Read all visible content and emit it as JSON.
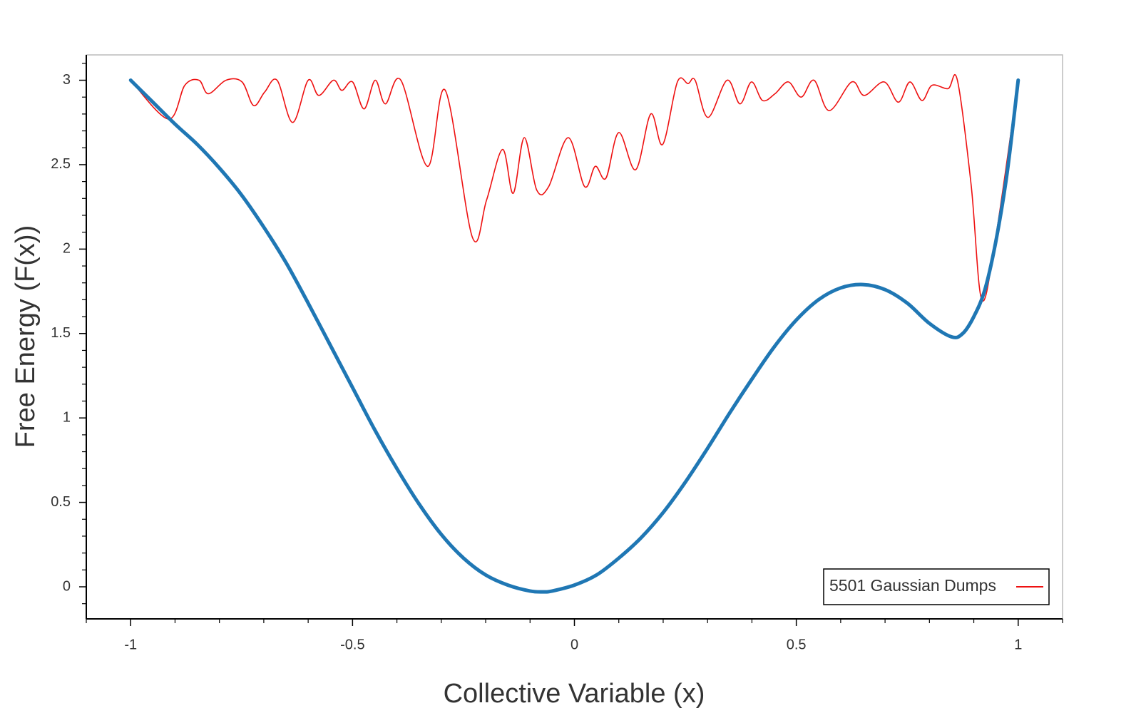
{
  "chart_data": {
    "type": "line",
    "xlabel": "Collective Variable (x)",
    "ylabel": "Free Energy (F(x))",
    "xlim": [
      -1.1,
      1.1
    ],
    "ylim": [
      -0.19,
      3.15
    ],
    "xticks": [
      -1,
      -0.5,
      0,
      0.5,
      1
    ],
    "yticks": [
      0,
      0.5,
      1,
      1.5,
      2,
      2.5,
      3
    ],
    "x_minor_ticks": [
      -1.1,
      -0.9,
      -0.8,
      -0.7,
      -0.6,
      -0.4,
      -0.3,
      -0.2,
      -0.1,
      0.1,
      0.2,
      0.3,
      0.4,
      0.6,
      0.7,
      0.8,
      0.9,
      1.1
    ],
    "y_minor_ticks": [
      -0.1,
      0.1,
      0.2,
      0.3,
      0.4,
      0.6,
      0.7,
      0.8,
      0.9,
      1.1,
      1.2,
      1.3,
      1.4,
      1.6,
      1.7,
      1.8,
      1.9,
      2.1,
      2.2,
      2.3,
      2.4,
      2.6,
      2.7,
      2.8,
      2.9,
      3.1
    ],
    "legend": "lower right",
    "series": [
      {
        "color": "#1f77b4",
        "width": 5,
        "x": [
          -1,
          -0.95,
          -0.9,
          -0.85,
          -0.8,
          -0.75,
          -0.7,
          -0.65,
          -0.6,
          -0.55,
          -0.5,
          -0.45,
          -0.4,
          -0.35,
          -0.3,
          -0.25,
          -0.2,
          -0.15,
          -0.1,
          -0.07,
          -0.05,
          0,
          0.05,
          0.1,
          0.15,
          0.2,
          0.25,
          0.3,
          0.35,
          0.4,
          0.45,
          0.5,
          0.55,
          0.6,
          0.65,
          0.7,
          0.75,
          0.8,
          0.85,
          0.875,
          0.9,
          0.925,
          0.95,
          0.975,
          1
        ],
        "values": [
          3.0,
          2.87,
          2.74,
          2.62,
          2.48,
          2.32,
          2.13,
          1.92,
          1.68,
          1.43,
          1.18,
          0.93,
          0.7,
          0.49,
          0.31,
          0.17,
          0.07,
          0.01,
          -0.025,
          -0.03,
          -0.025,
          0.01,
          0.07,
          0.17,
          0.29,
          0.44,
          0.62,
          0.82,
          1.03,
          1.23,
          1.42,
          1.58,
          1.7,
          1.77,
          1.79,
          1.76,
          1.68,
          1.56,
          1.48,
          1.5,
          1.6,
          1.76,
          2.05,
          2.45,
          3.0
        ]
      },
      {
        "name": "5501 Gaussian Dumps",
        "color": "#ee1111",
        "width": 1.6,
        "x": [
          -1,
          -0.915,
          -0.878,
          -0.846,
          -0.825,
          -0.785,
          -0.749,
          -0.723,
          -0.698,
          -0.67,
          -0.635,
          -0.6,
          -0.576,
          -0.543,
          -0.524,
          -0.5,
          -0.474,
          -0.449,
          -0.426,
          -0.391,
          -0.331,
          -0.291,
          -0.23,
          -0.198,
          -0.162,
          -0.138,
          -0.113,
          -0.085,
          -0.058,
          -0.014,
          0.023,
          0.047,
          0.071,
          0.1,
          0.138,
          0.172,
          0.199,
          0.232,
          0.256,
          0.272,
          0.301,
          0.344,
          0.373,
          0.399,
          0.424,
          0.452,
          0.482,
          0.511,
          0.54,
          0.574,
          0.625,
          0.653,
          0.698,
          0.73,
          0.756,
          0.783,
          0.806,
          0.842,
          0.863,
          0.894,
          0.918,
          0.95,
          1
        ],
        "values": [
          3.0,
          2.77,
          2.97,
          3.0,
          2.92,
          3.0,
          2.99,
          2.85,
          2.93,
          3.0,
          2.75,
          3.0,
          2.91,
          3.0,
          2.94,
          2.99,
          2.83,
          3.0,
          2.86,
          3.0,
          2.49,
          2.94,
          2.07,
          2.29,
          2.59,
          2.33,
          2.66,
          2.35,
          2.37,
          2.66,
          2.37,
          2.49,
          2.42,
          2.69,
          2.47,
          2.8,
          2.62,
          2.99,
          2.98,
          3.0,
          2.78,
          3.0,
          2.86,
          2.99,
          2.88,
          2.92,
          2.99,
          2.9,
          3.0,
          2.82,
          2.99,
          2.91,
          2.99,
          2.87,
          2.99,
          2.88,
          2.97,
          2.95,
          3.0,
          2.38,
          1.7,
          2.08,
          3.0
        ]
      }
    ]
  }
}
